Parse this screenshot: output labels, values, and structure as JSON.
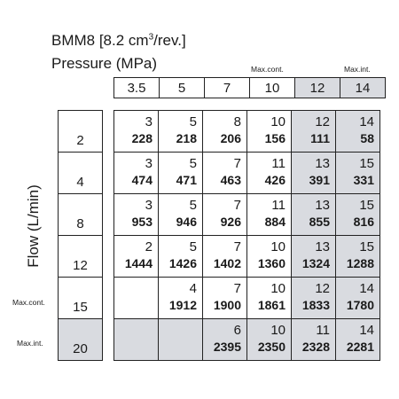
{
  "title_main": "BMM8 [8.2 cm",
  "title_sup": "3",
  "title_rest": "/rev.]",
  "pressure_label": "Pressure   (MPa)",
  "flow_label": "Flow   (L/min)",
  "max_cont_top": "Max.cont.",
  "max_int_top": "Max.int.",
  "max_cont_left": "Max.cont.",
  "max_int_left": "Max.int.",
  "pressures": [
    "3.5",
    "5",
    "7",
    "10",
    "12",
    "14"
  ],
  "flows": [
    "2",
    "4",
    "8",
    "12",
    "15",
    "20"
  ],
  "grid": [
    [
      [
        "3",
        "228"
      ],
      [
        "5",
        "218"
      ],
      [
        "8",
        "206"
      ],
      [
        "10",
        "156"
      ],
      [
        "12",
        "111"
      ],
      [
        "14",
        "58"
      ]
    ],
    [
      [
        "3",
        "474"
      ],
      [
        "5",
        "471"
      ],
      [
        "7",
        "463"
      ],
      [
        "11",
        "426"
      ],
      [
        "13",
        "391"
      ],
      [
        "15",
        "331"
      ]
    ],
    [
      [
        "3",
        "953"
      ],
      [
        "5",
        "946"
      ],
      [
        "7",
        "926"
      ],
      [
        "11",
        "884"
      ],
      [
        "13",
        "855"
      ],
      [
        "15",
        "816"
      ]
    ],
    [
      [
        "2",
        "1444"
      ],
      [
        "5",
        "1426"
      ],
      [
        "7",
        "1402"
      ],
      [
        "10",
        "1360"
      ],
      [
        "13",
        "1324"
      ],
      [
        "15",
        "1288"
      ]
    ],
    [
      [
        "",
        ""
      ],
      [
        "4",
        "1912"
      ],
      [
        "7",
        "1900"
      ],
      [
        "10",
        "1861"
      ],
      [
        "12",
        "1833"
      ],
      [
        "14",
        "1780"
      ]
    ],
    [
      [
        "",
        ""
      ],
      [
        "",
        ""
      ],
      [
        "6",
        "2395"
      ],
      [
        "10",
        "2350"
      ],
      [
        "11",
        "2328"
      ],
      [
        "14",
        "2281"
      ]
    ]
  ],
  "colors": {
    "shade": "#d9dbe0",
    "border": "#222222"
  }
}
